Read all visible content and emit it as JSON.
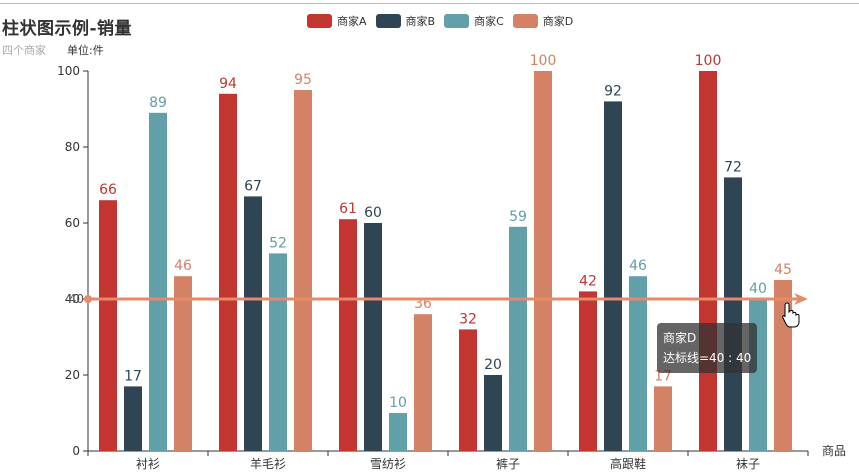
{
  "header": {
    "title": "柱状图示例-销量",
    "subtitle": "四个商家",
    "unit": "单位:件"
  },
  "legend": [
    {
      "label": "商家A",
      "color": "#c23531"
    },
    {
      "label": "商家B",
      "color": "#2f4554"
    },
    {
      "label": "商家C",
      "color": "#61a0a8"
    },
    {
      "label": "商家D",
      "color": "#d48265"
    }
  ],
  "tooltip": {
    "series": "商家D",
    "text": "达标线=40 : 40"
  },
  "chart_data": {
    "type": "bar",
    "title": "柱状图示例-销量",
    "subtitle": "四个商家",
    "unit_label": "单位:件",
    "xlabel": "商品",
    "ylabel": "",
    "categories": [
      "衬衫",
      "羊毛衫",
      "雪纺衫",
      "裤子",
      "高跟鞋",
      "袜子"
    ],
    "series": [
      {
        "name": "商家A",
        "color": "#c23531",
        "values": [
          66,
          94,
          61,
          32,
          42,
          100
        ]
      },
      {
        "name": "商家B",
        "color": "#2f4554",
        "values": [
          17,
          67,
          60,
          20,
          92,
          72
        ]
      },
      {
        "name": "商家C",
        "color": "#61a0a8",
        "values": [
          89,
          52,
          10,
          59,
          46,
          40
        ]
      },
      {
        "name": "商家D",
        "color": "#d48265",
        "values": [
          46,
          95,
          36,
          100,
          17,
          45
        ]
      }
    ],
    "markLine": {
      "name": "达标线",
      "value": 40,
      "color": "#e8896b"
    },
    "yticks": [
      0,
      20,
      40,
      60,
      80,
      100
    ],
    "ylim": [
      0,
      100
    ],
    "grid": false,
    "legend_position": "top"
  }
}
